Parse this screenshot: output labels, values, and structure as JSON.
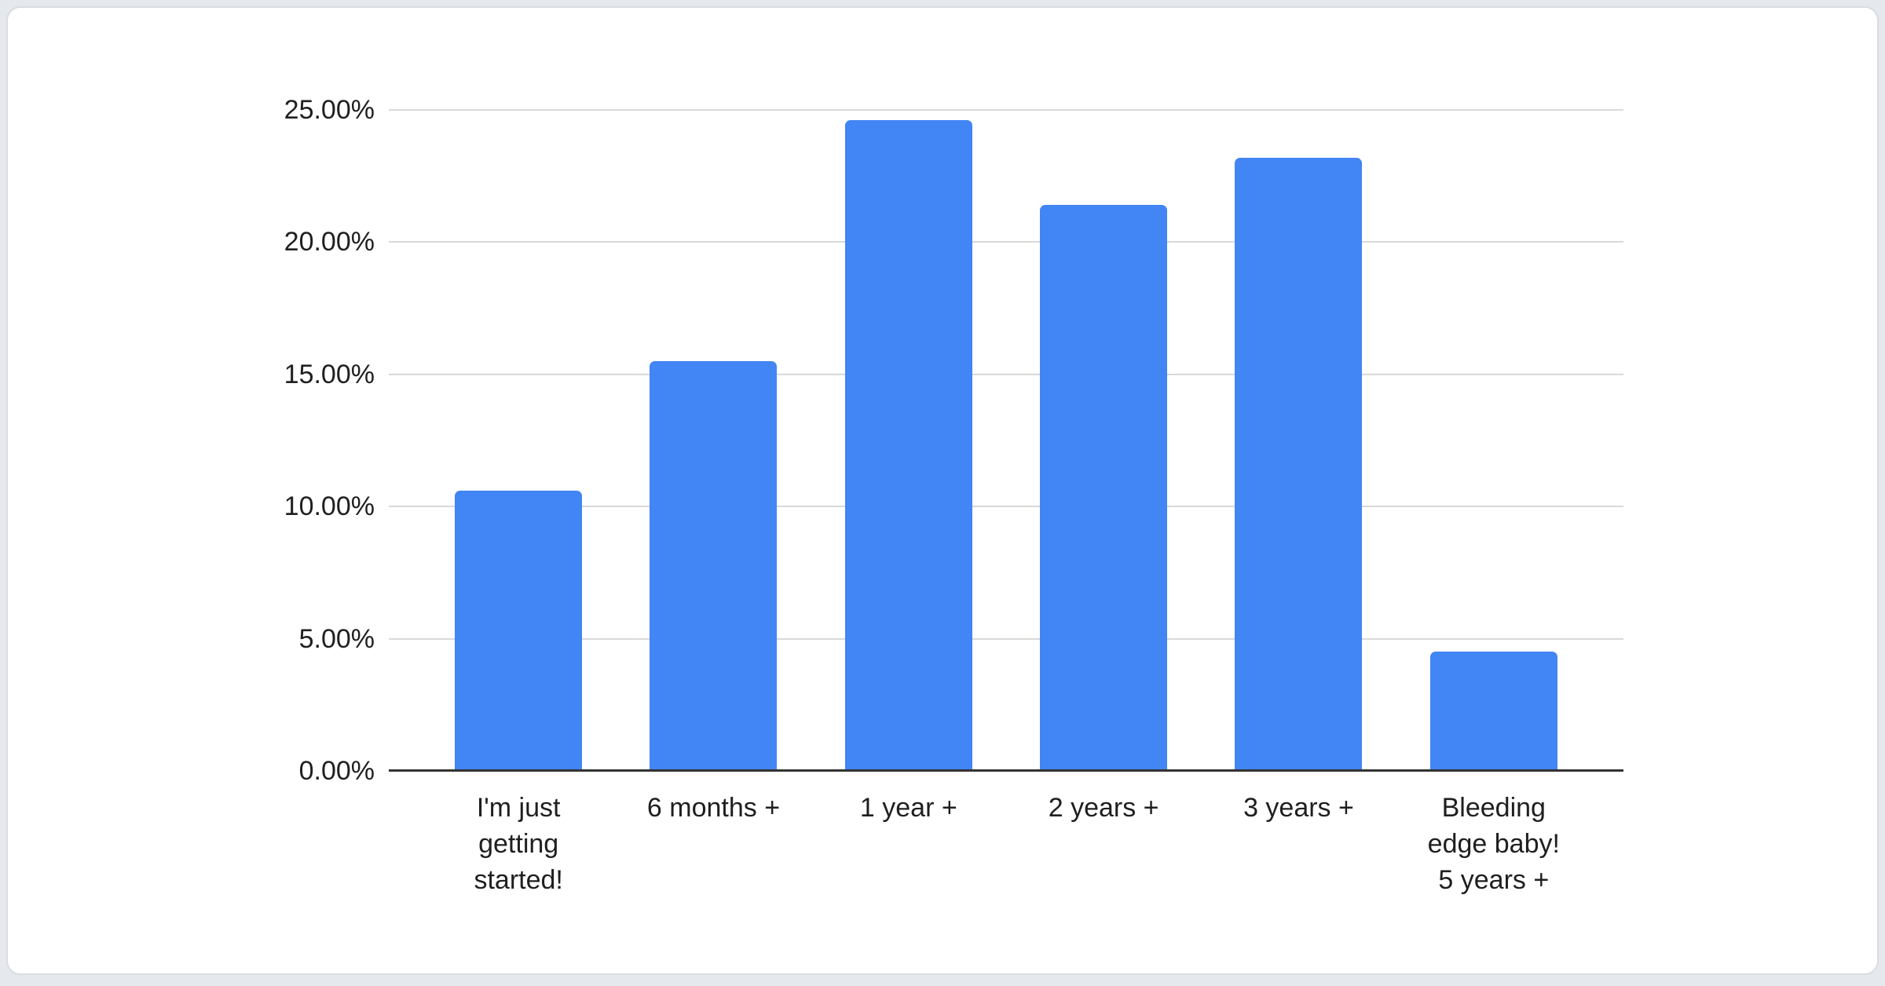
{
  "page": {
    "background_color": "#e5e8ec"
  },
  "card": {
    "background_color": "#ffffff",
    "border_color": "#d8dce1"
  },
  "chart_data": {
    "type": "bar",
    "title": "",
    "categories": [
      "I'm just getting started!",
      "6 months +",
      "1 year +",
      "2 years +",
      "3 years +",
      "Bleeding edge baby! 5 years +"
    ],
    "category_display_lines": [
      [
        "I'm just",
        "getting",
        "started!"
      ],
      [
        "6 months +"
      ],
      [
        "1 year +"
      ],
      [
        "2 years +"
      ],
      [
        "3 years +"
      ],
      [
        "Bleeding",
        "edge baby!",
        "5 years +"
      ]
    ],
    "values": [
      10.6,
      15.5,
      24.6,
      21.4,
      23.2,
      4.5
    ],
    "value_unit": "%",
    "xlabel": "",
    "ylabel": "",
    "ylim": [
      0,
      25
    ],
    "yticks": [
      {
        "value": 25,
        "label": "25.00%"
      },
      {
        "value": 20,
        "label": "20.00%"
      },
      {
        "value": 15,
        "label": "15.00%"
      },
      {
        "value": 10,
        "label": "10.00%"
      },
      {
        "value": 5,
        "label": "5.00%"
      },
      {
        "value": 0,
        "label": "0.00%"
      }
    ],
    "grid": true,
    "legend_position": "none",
    "bar_color": "#4285f4",
    "gridline_color": "#d9d9d9",
    "axis_line_color": "#333333",
    "tick_label_color": "#1f1f1f"
  }
}
